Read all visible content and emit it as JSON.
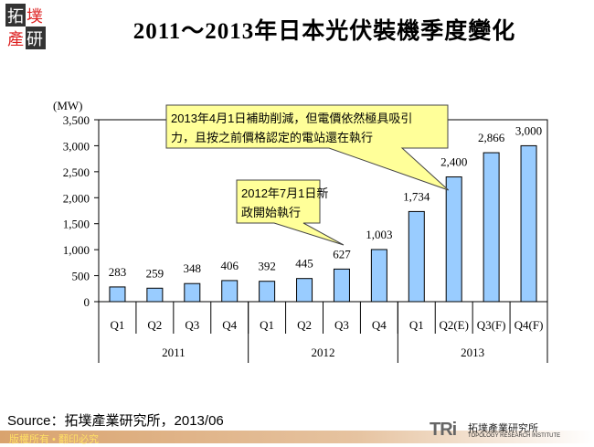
{
  "title": "2011～2013年日本光伏裝機季度變化",
  "logo_text": "拓墣產研",
  "source": "Source：拓墣產業研究所，2013/06",
  "footer": "版權所有 • 翻印必究",
  "brand": {
    "mark": "TRi",
    "name_cn": "拓墣產業研究所",
    "name_en": "TOPOLOGY RESEARCH INSTITUTE"
  },
  "colors": {
    "bar": "#99ccff",
    "callout": "#ffff99"
  },
  "chart_data": {
    "type": "bar",
    "ylabel": "(MW)",
    "ylim": [
      0,
      3500
    ],
    "yticks": [
      0,
      500,
      1000,
      1500,
      2000,
      2500,
      3000,
      3500
    ],
    "ytick_labels": [
      "0",
      "500",
      "1,000",
      "1,500",
      "2,000",
      "2,500",
      "3,000",
      "3,500"
    ],
    "categories": [
      "Q1",
      "Q2",
      "Q3",
      "Q4",
      "Q1",
      "Q2",
      "Q3",
      "Q4",
      "Q1",
      "Q2(E)",
      "Q3(F)",
      "Q4(F)"
    ],
    "groups": [
      {
        "label": "2011",
        "count": 4
      },
      {
        "label": "2012",
        "count": 4
      },
      {
        "label": "2013",
        "count": 4
      }
    ],
    "values": [
      283,
      259,
      348,
      406,
      392,
      445,
      627,
      1003,
      1734,
      2400,
      2866,
      3000
    ],
    "value_labels": [
      "283",
      "259",
      "348",
      "406",
      "392",
      "445",
      "627",
      "1,003",
      "1,734",
      "2,400",
      "2,866",
      "3,000"
    ],
    "annotations": [
      {
        "lines": [
          "2013年4月1日補助削減，但電價依然極具吸引",
          "力，且按之前價格認定的電站還在執行"
        ],
        "points_to": "Q2(E) 2013"
      },
      {
        "lines": [
          "2012年7月1日新",
          "政開始執行"
        ],
        "points_to": "Q3 2012"
      }
    ]
  }
}
